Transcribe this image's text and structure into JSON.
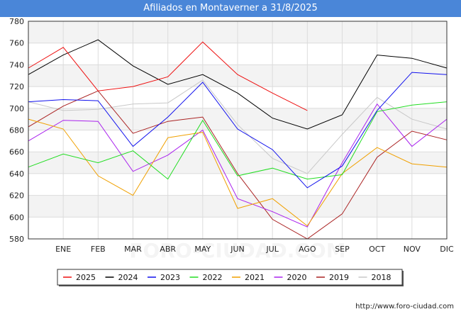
{
  "title": "Afiliados en Montaverner a 31/8/2025",
  "footer": "http://www.foro-ciudad.com",
  "watermark": "FORO-CIUDAD.COM",
  "chart_data": {
    "type": "line",
    "categories": [
      "",
      "ENE",
      "FEB",
      "MAR",
      "ABR",
      "MAY",
      "JUN",
      "JUL",
      "AGO",
      "SEP",
      "OCT",
      "NOV",
      "DIC"
    ],
    "ylim": [
      580,
      780
    ],
    "yticks": [
      580,
      600,
      620,
      640,
      660,
      680,
      700,
      720,
      740,
      760,
      780
    ],
    "grid": true,
    "legend_position": "bottom",
    "series": [
      {
        "name": "2025",
        "color": "#ee1111",
        "values": [
          737,
          756,
          716,
          720,
          729,
          761,
          731,
          714,
          698,
          null,
          null,
          null,
          null
        ]
      },
      {
        "name": "2024",
        "color": "#000000",
        "values": [
          731,
          749,
          763,
          739,
          722,
          731,
          714,
          691,
          681,
          694,
          749,
          746,
          737
        ]
      },
      {
        "name": "2023",
        "color": "#1111ee",
        "values": [
          706,
          708,
          707,
          665,
          692,
          724,
          681,
          662,
          627,
          647,
          698,
          733,
          731
        ]
      },
      {
        "name": "2022",
        "color": "#22dd22",
        "values": [
          646,
          658,
          650,
          661,
          635,
          689,
          638,
          645,
          635,
          639,
          697,
          703,
          706
        ]
      },
      {
        "name": "2021",
        "color": "#f0a000",
        "values": [
          690,
          681,
          638,
          620,
          673,
          678,
          608,
          617,
          592,
          640,
          664,
          649,
          646
        ]
      },
      {
        "name": "2020",
        "color": "#aa22ee",
        "values": [
          670,
          689,
          688,
          642,
          657,
          680,
          617,
          605,
          591,
          650,
          704,
          665,
          690
        ]
      },
      {
        "name": "2019",
        "color": "#aa2222",
        "values": [
          683,
          702,
          716,
          677,
          688,
          692,
          640,
          598,
          580,
          603,
          655,
          679,
          671
        ]
      },
      {
        "name": "2018",
        "color": "#c8c8c8",
        "values": [
          706,
          698,
          699,
          704,
          705,
          726,
          685,
          654,
          640,
          676,
          710,
          690,
          681
        ]
      }
    ]
  }
}
